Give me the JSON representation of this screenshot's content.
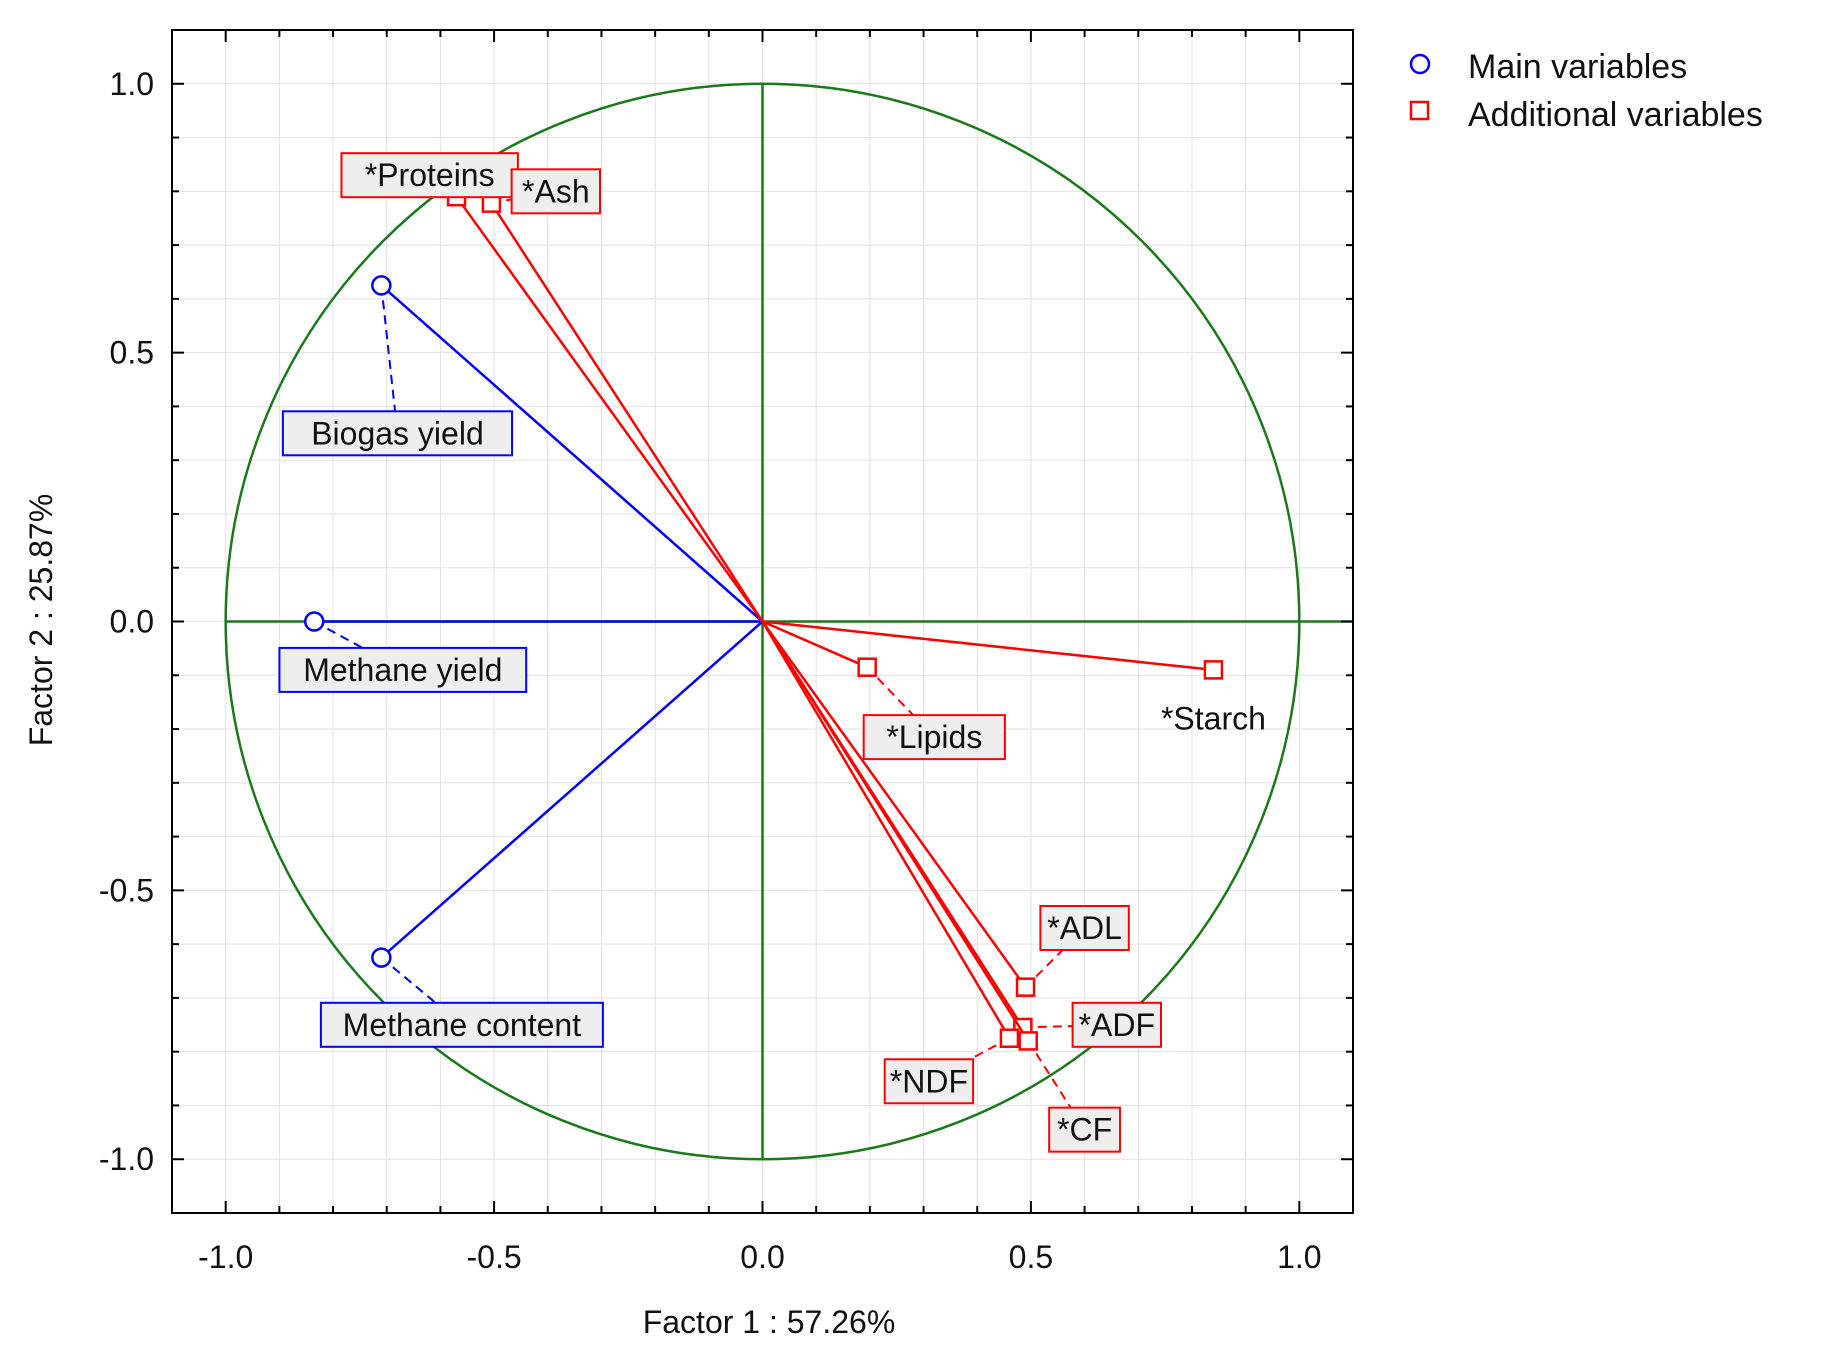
{
  "chart_data": {
    "type": "scatter",
    "subtype": "pca-correlation-circle",
    "title": "",
    "xlabel": "Factor 1 : 57.26%",
    "ylabel": "Factor 2 : 25.87%",
    "xlim": [
      -1.1,
      1.1
    ],
    "ylim": [
      -1.1,
      1.1
    ],
    "xticks": [
      -1.0,
      -0.5,
      0.0,
      0.5,
      1.0
    ],
    "yticks": [
      -1.0,
      -0.5,
      0.0,
      0.5,
      1.0
    ],
    "xtick_labels": [
      "-1.0",
      "-0.5",
      "0.0",
      "0.5",
      "1.0"
    ],
    "ytick_labels": [
      "-1.0",
      "-0.5",
      "0.0",
      "0.5",
      "1.0"
    ],
    "grid": true,
    "unit_circle": true,
    "legend_position": "top-right",
    "legend": [
      {
        "label": "Main variables",
        "marker": "circle",
        "color": "#0000ff"
      },
      {
        "label": "Additional variables",
        "marker": "square",
        "color": "#ff0000"
      }
    ],
    "colors": {
      "main": "#0000ff",
      "additional": "#ff0000",
      "axes": "#1a7a1a",
      "label_fill": "#eeeeee"
    },
    "series": [
      {
        "name": "Main variables",
        "color": "#0000ff",
        "marker": "circle",
        "points": [
          {
            "label": "Biogas yield",
            "x": -0.71,
            "y": 0.625,
            "boxed": true,
            "label_x": -0.68,
            "label_y": 0.35
          },
          {
            "label": "Methane yield",
            "x": -0.835,
            "y": 0.0,
            "boxed": true,
            "label_x": -0.67,
            "label_y": -0.09
          },
          {
            "label": "Methane content",
            "x": -0.71,
            "y": -0.625,
            "boxed": true,
            "label_x": -0.56,
            "label_y": -0.75
          }
        ]
      },
      {
        "name": "Additional variables",
        "color": "#ff0000",
        "marker": "square",
        "points": [
          {
            "label": "*Proteins",
            "x": -0.57,
            "y": 0.79,
            "boxed": true,
            "label_x": -0.62,
            "label_y": 0.83
          },
          {
            "label": "*Ash",
            "x": -0.505,
            "y": 0.778,
            "boxed": true,
            "label_x": -0.385,
            "label_y": 0.8
          },
          {
            "label": "*Lipids",
            "x": 0.195,
            "y": -0.085,
            "boxed": true,
            "label_x": 0.32,
            "label_y": -0.215
          },
          {
            "label": "*Starch",
            "x": 0.84,
            "y": -0.09,
            "boxed": false,
            "label_x": 0.84,
            "label_y": -0.18
          },
          {
            "label": "*ADL",
            "x": 0.49,
            "y": -0.68,
            "boxed": true,
            "label_x": 0.6,
            "label_y": -0.57
          },
          {
            "label": "*ADF",
            "x": 0.485,
            "y": -0.755,
            "boxed": true,
            "label_x": 0.66,
            "label_y": -0.75
          },
          {
            "label": "*NDF",
            "x": 0.46,
            "y": -0.775,
            "boxed": true,
            "label_x": 0.31,
            "label_y": -0.855
          },
          {
            "label": "*CF",
            "x": 0.495,
            "y": -0.78,
            "boxed": true,
            "label_x": 0.6,
            "label_y": -0.945
          }
        ]
      }
    ]
  }
}
